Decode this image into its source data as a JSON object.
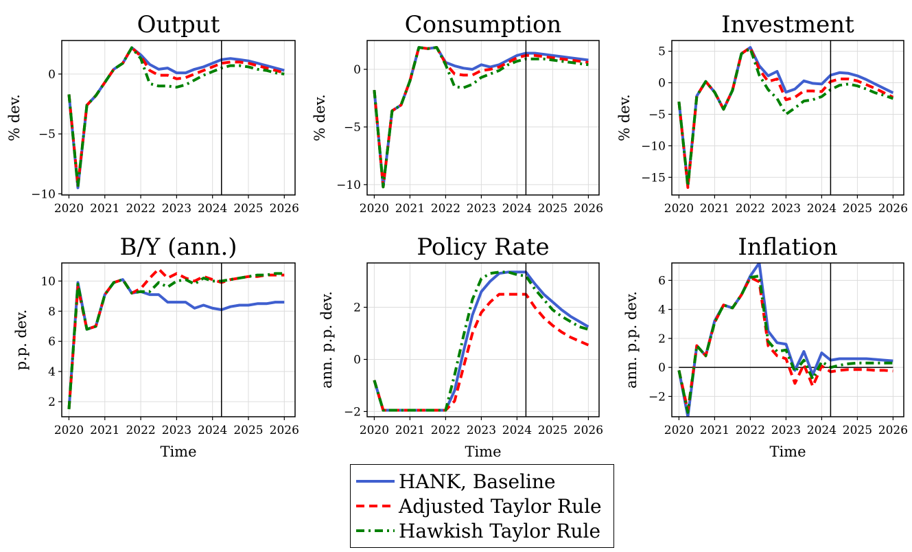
{
  "chart_data": [
    {
      "type": "line",
      "title": "Output",
      "xlabel": "",
      "ylabel": "% dev.",
      "xlim": [
        2019.8,
        2026.3
      ],
      "ylim": [
        -10.1,
        2.8
      ],
      "xticks": [
        2020,
        2021,
        2022,
        2023,
        2024,
        2025,
        2026
      ],
      "yticks": [
        -10,
        -5,
        0
      ],
      "ytick_labels": [
        "−10",
        "−5",
        "0"
      ],
      "grid": true,
      "vline": 2024.25,
      "hline": null,
      "x": [
        2020,
        2020.25,
        2020.5,
        2020.75,
        2021,
        2021.25,
        2021.5,
        2021.75,
        2022,
        2022.25,
        2022.5,
        2022.75,
        2023,
        2023.25,
        2023.5,
        2023.75,
        2024,
        2024.25,
        2024.5,
        2024.75,
        2025,
        2025.25,
        2025.5,
        2025.75,
        2026
      ],
      "series": [
        {
          "name": "HANK, Baseline",
          "values": [
            -1.7,
            -9.5,
            -2.6,
            -1.8,
            -0.7,
            0.4,
            0.9,
            2.2,
            1.6,
            0.8,
            0.4,
            0.5,
            0.1,
            0.1,
            0.4,
            0.6,
            0.9,
            1.2,
            1.3,
            1.2,
            1.1,
            0.9,
            0.7,
            0.5,
            0.3
          ]
        },
        {
          "name": "Adjusted Taylor Rule",
          "values": [
            -1.7,
            -9.3,
            -2.6,
            -1.8,
            -0.7,
            0.4,
            0.9,
            2.2,
            1.5,
            0.3,
            -0.1,
            -0.1,
            -0.4,
            -0.3,
            0.0,
            0.3,
            0.6,
            0.9,
            1.0,
            1.0,
            0.9,
            0.7,
            0.5,
            0.3,
            0.1
          ]
        },
        {
          "name": "Hawkish Taylor Rule",
          "values": [
            -1.7,
            -9.4,
            -2.6,
            -1.8,
            -0.7,
            0.4,
            0.9,
            2.2,
            1.3,
            -0.8,
            -1.0,
            -1.0,
            -1.1,
            -0.9,
            -0.5,
            -0.1,
            0.2,
            0.5,
            0.7,
            0.7,
            0.6,
            0.4,
            0.3,
            0.1,
            0.0
          ]
        }
      ]
    },
    {
      "type": "line",
      "title": "Consumption",
      "xlabel": "",
      "ylabel": "% dev.",
      "xlim": [
        2019.8,
        2026.3
      ],
      "ylim": [
        -10.9,
        2.5
      ],
      "xticks": [
        2020,
        2021,
        2022,
        2023,
        2024,
        2025,
        2026
      ],
      "yticks": [
        -10,
        -5,
        0
      ],
      "ytick_labels": [
        "−10",
        "−5",
        "0"
      ],
      "grid": true,
      "vline": 2024.25,
      "hline": null,
      "x": [
        2020,
        2020.25,
        2020.5,
        2020.75,
        2021,
        2021.25,
        2021.5,
        2021.75,
        2022,
        2022.25,
        2022.5,
        2022.75,
        2023,
        2023.25,
        2023.5,
        2023.75,
        2024,
        2024.25,
        2024.5,
        2024.75,
        2025,
        2025.25,
        2025.5,
        2025.75,
        2026
      ],
      "series": [
        {
          "name": "HANK, Baseline",
          "values": [
            -1.8,
            -10.2,
            -3.6,
            -3.1,
            -1.0,
            1.9,
            1.8,
            1.9,
            0.6,
            0.3,
            0.1,
            0.0,
            0.4,
            0.2,
            0.4,
            0.8,
            1.2,
            1.4,
            1.4,
            1.3,
            1.2,
            1.1,
            1.0,
            0.9,
            0.8
          ]
        },
        {
          "name": "Adjusted Taylor Rule",
          "values": [
            -1.8,
            -10.2,
            -3.6,
            -3.1,
            -1.0,
            1.9,
            1.8,
            1.9,
            0.5,
            -0.4,
            -0.5,
            -0.5,
            -0.1,
            0.0,
            0.2,
            0.6,
            1.0,
            1.2,
            1.2,
            1.1,
            1.0,
            0.9,
            0.8,
            0.7,
            0.6
          ]
        },
        {
          "name": "Hawkish Taylor Rule",
          "values": [
            -1.8,
            -10.2,
            -3.6,
            -3.1,
            -1.0,
            1.9,
            1.8,
            1.9,
            0.4,
            -1.5,
            -1.6,
            -1.3,
            -0.7,
            -0.4,
            -0.1,
            0.4,
            0.7,
            0.9,
            0.9,
            0.9,
            0.8,
            0.7,
            0.6,
            0.5,
            0.4
          ]
        }
      ]
    },
    {
      "type": "line",
      "title": "Investment",
      "xlabel": "",
      "ylabel": "% dev.",
      "xlim": [
        2019.8,
        2026.3
      ],
      "ylim": [
        -17.8,
        6.7
      ],
      "xticks": [
        2020,
        2021,
        2022,
        2023,
        2024,
        2025,
        2026
      ],
      "yticks": [
        -15,
        -10,
        -5,
        0,
        5
      ],
      "ytick_labels": [
        "−15",
        "−10",
        "−5",
        "0",
        "5"
      ],
      "grid": true,
      "vline": 2024.25,
      "hline": null,
      "x": [
        2020,
        2020.25,
        2020.5,
        2020.75,
        2021,
        2021.25,
        2021.5,
        2021.75,
        2022,
        2022.25,
        2022.5,
        2022.75,
        2023,
        2023.25,
        2023.5,
        2023.75,
        2024,
        2024.25,
        2024.5,
        2024.75,
        2025,
        2025.25,
        2025.5,
        2025.75,
        2026
      ],
      "series": [
        {
          "name": "HANK, Baseline",
          "values": [
            -3.0,
            -16.3,
            -2.1,
            0.2,
            -1.5,
            -4.2,
            -1.2,
            4.6,
            5.6,
            2.7,
            1.1,
            1.8,
            -1.5,
            -1.0,
            0.3,
            -0.1,
            -0.2,
            1.2,
            1.6,
            1.5,
            1.1,
            0.5,
            -0.2,
            -0.9,
            -1.6
          ]
        },
        {
          "name": "Adjusted Taylor Rule",
          "values": [
            -3.0,
            -16.6,
            -2.1,
            0.2,
            -1.5,
            -4.2,
            -1.2,
            4.6,
            5.6,
            2.1,
            0.2,
            0.6,
            -2.7,
            -2.3,
            -1.3,
            -1.3,
            -1.4,
            0.2,
            0.6,
            0.6,
            0.3,
            -0.3,
            -0.9,
            -1.6,
            -2.3
          ]
        },
        {
          "name": "Hawkish Taylor Rule",
          "values": [
            -3.0,
            -16.4,
            -2.1,
            0.2,
            -1.5,
            -4.2,
            -1.2,
            4.6,
            5.4,
            1.2,
            -1.1,
            -2.5,
            -5.0,
            -4.0,
            -2.9,
            -2.7,
            -2.2,
            -1.1,
            -0.4,
            -0.2,
            -0.5,
            -1.0,
            -1.6,
            -2.0,
            -2.5
          ]
        }
      ]
    },
    {
      "type": "line",
      "title": "B/Y (ann.)",
      "xlabel": "Time",
      "ylabel": "p.p. dev.",
      "xlim": [
        2019.8,
        2026.3
      ],
      "ylim": [
        1.0,
        11.2
      ],
      "xticks": [
        2020,
        2021,
        2022,
        2023,
        2024,
        2025,
        2026
      ],
      "yticks": [
        2,
        4,
        6,
        8,
        10
      ],
      "ytick_labels": [
        "2",
        "4",
        "6",
        "8",
        "10"
      ],
      "grid": true,
      "vline": 2024.25,
      "hline": null,
      "x": [
        2020,
        2020.25,
        2020.5,
        2020.75,
        2021,
        2021.25,
        2021.5,
        2021.75,
        2022,
        2022.25,
        2022.5,
        2022.75,
        2023,
        2023.25,
        2023.5,
        2023.75,
        2024,
        2024.25,
        2024.5,
        2024.75,
        2025,
        2025.25,
        2025.5,
        2025.75,
        2026
      ],
      "series": [
        {
          "name": "HANK, Baseline",
          "values": [
            1.5,
            9.9,
            6.8,
            7.0,
            9.1,
            9.9,
            10.1,
            9.2,
            9.3,
            9.1,
            9.1,
            8.6,
            8.6,
            8.6,
            8.2,
            8.4,
            8.2,
            8.1,
            8.3,
            8.4,
            8.4,
            8.5,
            8.5,
            8.6,
            8.6
          ]
        },
        {
          "name": "Adjusted Taylor Rule",
          "values": [
            1.5,
            9.6,
            6.8,
            7.0,
            9.1,
            9.9,
            10.1,
            9.2,
            9.5,
            10.2,
            10.8,
            10.2,
            10.5,
            10.2,
            10.0,
            10.3,
            10.1,
            9.9,
            10.1,
            10.2,
            10.3,
            10.3,
            10.4,
            10.4,
            10.4
          ]
        },
        {
          "name": "Hawkish Taylor Rule",
          "values": [
            1.5,
            9.8,
            6.8,
            7.0,
            9.1,
            9.9,
            10.1,
            9.2,
            9.3,
            9.3,
            9.9,
            9.6,
            10.0,
            10.1,
            9.8,
            10.2,
            10.0,
            10.0,
            10.1,
            10.2,
            10.3,
            10.4,
            10.4,
            10.5,
            10.5
          ]
        }
      ]
    },
    {
      "type": "line",
      "title": "Policy Rate",
      "xlabel": "Time",
      "ylabel": "ann. p.p. dev.",
      "xlim": [
        2019.8,
        2026.3
      ],
      "ylim": [
        -2.2,
        3.7
      ],
      "xticks": [
        2020,
        2021,
        2022,
        2023,
        2024,
        2025,
        2026
      ],
      "yticks": [
        -2,
        0,
        2
      ],
      "ytick_labels": [
        "−2",
        "0",
        "2"
      ],
      "grid": true,
      "vline": 2024.25,
      "hline": null,
      "x": [
        2020,
        2020.25,
        2020.5,
        2020.75,
        2021,
        2021.25,
        2021.5,
        2021.75,
        2022,
        2022.25,
        2022.5,
        2022.75,
        2023,
        2023.25,
        2023.5,
        2023.75,
        2024,
        2024.25,
        2024.5,
        2024.75,
        2025,
        2025.25,
        2025.5,
        2025.75,
        2026
      ],
      "series": [
        {
          "name": "HANK, Baseline",
          "values": [
            -0.8,
            -1.95,
            -1.95,
            -1.95,
            -1.95,
            -1.95,
            -1.95,
            -1.95,
            -1.95,
            -1.2,
            0.3,
            1.7,
            2.6,
            3.0,
            3.3,
            3.35,
            3.35,
            3.35,
            2.9,
            2.5,
            2.2,
            1.9,
            1.65,
            1.45,
            1.25
          ]
        },
        {
          "name": "Adjusted Taylor Rule",
          "values": [
            -0.8,
            -1.95,
            -1.95,
            -1.95,
            -1.95,
            -1.95,
            -1.95,
            -1.95,
            -1.95,
            -1.6,
            -0.3,
            1.0,
            1.8,
            2.2,
            2.5,
            2.5,
            2.5,
            2.5,
            2.0,
            1.6,
            1.3,
            1.05,
            0.85,
            0.7,
            0.55
          ]
        },
        {
          "name": "Hawkish Taylor Rule",
          "values": [
            -0.8,
            -1.95,
            -1.95,
            -1.95,
            -1.95,
            -1.95,
            -1.95,
            -1.95,
            -1.95,
            -0.6,
            0.9,
            2.3,
            3.1,
            3.3,
            3.35,
            3.35,
            3.25,
            3.2,
            2.7,
            2.3,
            1.9,
            1.65,
            1.45,
            1.25,
            1.15
          ]
        }
      ]
    },
    {
      "type": "line",
      "title": "Inflation",
      "xlabel": "Time",
      "ylabel": "ann. p.p. dev.",
      "xlim": [
        2019.8,
        2026.3
      ],
      "ylim": [
        -3.4,
        7.2
      ],
      "xticks": [
        2020,
        2021,
        2022,
        2023,
        2024,
        2025,
        2026
      ],
      "yticks": [
        -2,
        0,
        2,
        4,
        6
      ],
      "ytick_labels": [
        "−2",
        "0",
        "2",
        "4",
        "6"
      ],
      "grid": true,
      "vline": 2024.25,
      "hline": 0,
      "x": [
        2020,
        2020.25,
        2020.5,
        2020.75,
        2021,
        2021.25,
        2021.5,
        2021.75,
        2022,
        2022.25,
        2022.5,
        2022.75,
        2023,
        2023.25,
        2023.5,
        2023.75,
        2024,
        2024.25,
        2024.5,
        2024.75,
        2025,
        2025.25,
        2025.5,
        2025.75,
        2026
      ],
      "series": [
        {
          "name": "HANK, Baseline",
          "values": [
            -0.2,
            -3.4,
            1.5,
            0.8,
            3.2,
            4.3,
            4.1,
            5.0,
            6.3,
            7.2,
            2.5,
            1.7,
            1.6,
            -0.2,
            1.1,
            -0.5,
            1.0,
            0.5,
            0.6,
            0.6,
            0.6,
            0.6,
            0.55,
            0.5,
            0.45
          ]
        },
        {
          "name": "Adjusted Taylor Rule",
          "values": [
            -0.2,
            -3.0,
            1.5,
            0.8,
            3.1,
            4.3,
            4.1,
            5.0,
            6.2,
            5.9,
            1.5,
            0.8,
            0.6,
            -1.1,
            0.2,
            -1.3,
            0.1,
            -0.3,
            -0.2,
            -0.15,
            -0.15,
            -0.15,
            -0.2,
            -0.2,
            -0.25
          ]
        },
        {
          "name": "Hawkish Taylor Rule",
          "values": [
            -0.2,
            -3.1,
            1.5,
            0.8,
            3.1,
            4.3,
            4.1,
            5.0,
            6.2,
            6.3,
            1.8,
            1.1,
            1.2,
            -0.3,
            0.5,
            -0.8,
            0.4,
            0.0,
            0.15,
            0.25,
            0.3,
            0.3,
            0.3,
            0.3,
            0.3
          ]
        }
      ]
    }
  ],
  "styles": {
    "series_colors": [
      "#3f5fcf",
      "#ff0000",
      "#008000"
    ],
    "series_dash": [
      "solid",
      "dashed",
      "dashdot"
    ]
  },
  "legend": {
    "position": "bottom-center",
    "items": [
      {
        "label": "HANK, Baseline"
      },
      {
        "label": "Adjusted Taylor Rule"
      },
      {
        "label": "Hawkish Taylor Rule"
      }
    ]
  }
}
